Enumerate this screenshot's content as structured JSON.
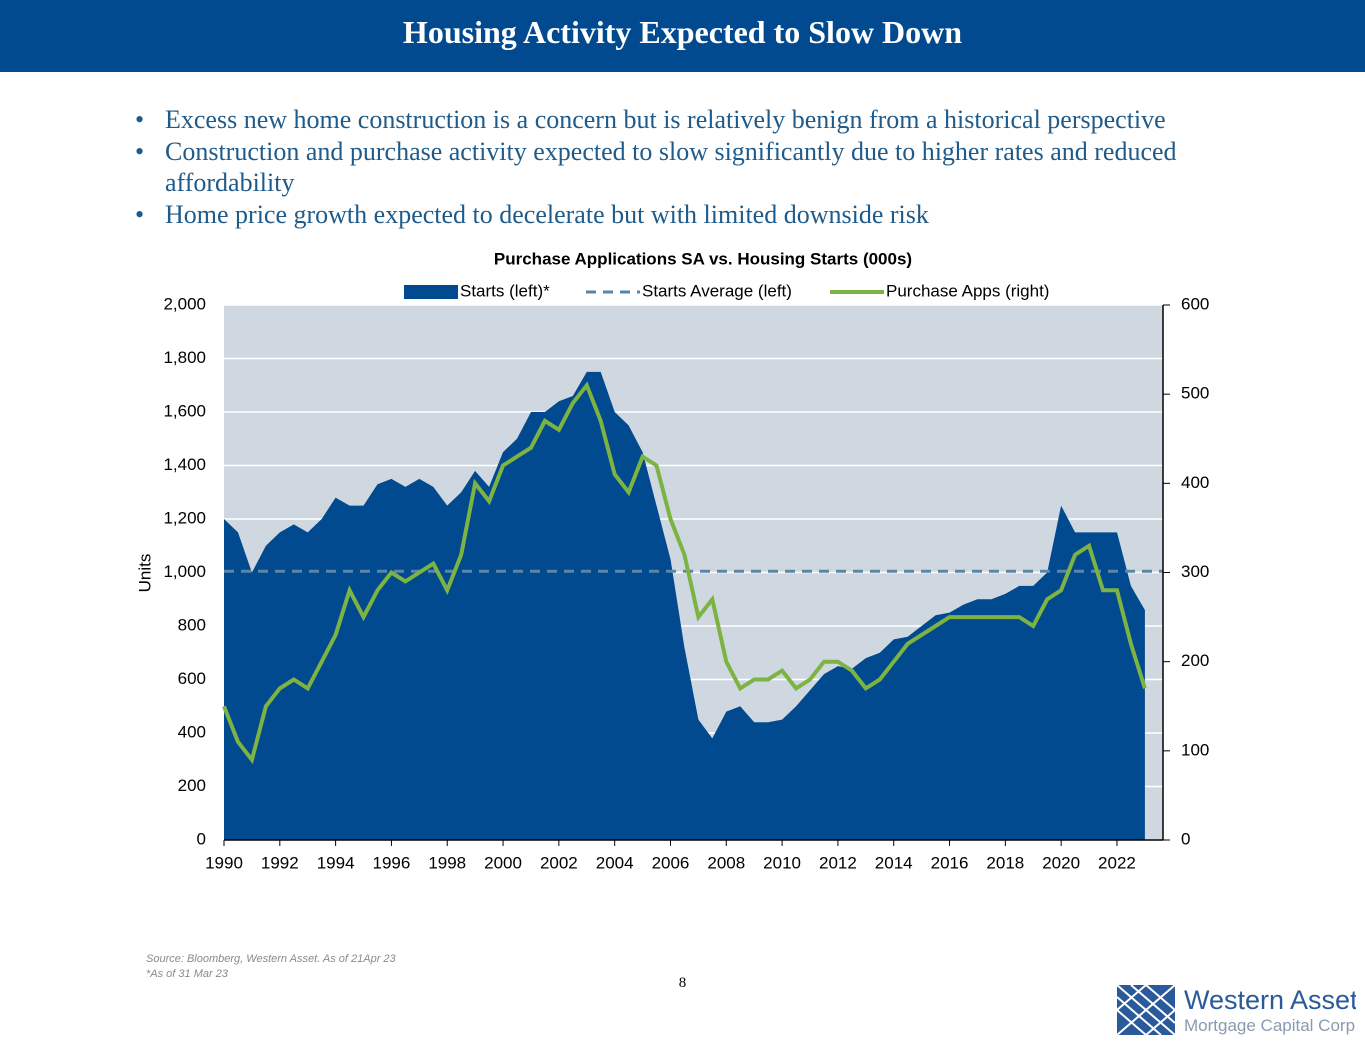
{
  "header": {
    "title": "Housing Activity Expected to Slow Down"
  },
  "bullets": [
    "Excess new home construction is a concern but is relatively benign from a historical perspective",
    "Construction and purchase activity expected to slow significantly due to higher rates and reduced affordability",
    "Home price growth expected to decelerate but with limited downside risk"
  ],
  "chart_data": {
    "type": "combo",
    "title": "Purchase Applications SA vs. Housing Starts (000s)",
    "y_label": "Units",
    "legend": "top",
    "x": [
      1990,
      1990.5,
      1991,
      1991.5,
      1992,
      1992.5,
      1993,
      1993.5,
      1994,
      1994.5,
      1995,
      1995.5,
      1996,
      1996.5,
      1997,
      1997.5,
      1998,
      1998.5,
      1999,
      1999.5,
      2000,
      2000.5,
      2001,
      2001.5,
      2002,
      2002.5,
      2003,
      2003.5,
      2004,
      2004.5,
      2005,
      2005.5,
      2006,
      2006.5,
      2007,
      2007.5,
      2008,
      2008.5,
      2009,
      2009.5,
      2010,
      2010.5,
      2011,
      2011.5,
      2012,
      2012.5,
      2013,
      2013.5,
      2014,
      2014.5,
      2015,
      2015.5,
      2016,
      2016.5,
      2017,
      2017.5,
      2018,
      2018.5,
      2019,
      2019.5,
      2020,
      2020.5,
      2021,
      2021.5,
      2022,
      2022.5,
      2023
    ],
    "xlim": [
      1990,
      2023.65
    ],
    "xticks": [
      1990,
      1992,
      1994,
      1996,
      1998,
      2000,
      2002,
      2004,
      2006,
      2008,
      2010,
      2012,
      2014,
      2016,
      2018,
      2020,
      2022
    ],
    "ylim": [
      0,
      2000
    ],
    "yticks": [
      0,
      200,
      400,
      600,
      800,
      {
        "value": 1000,
        "label": "1,000"
      },
      {
        "value": 1200,
        "label": "1,200"
      },
      {
        "value": 1400,
        "label": "1,400"
      },
      {
        "value": 1600,
        "label": "1,600"
      },
      {
        "value": 1800,
        "label": "1,800"
      },
      {
        "value": 2000,
        "label": "2,000"
      }
    ],
    "y2lim": [
      0,
      600
    ],
    "y2ticks": [
      0,
      100,
      200,
      300,
      400,
      500,
      600
    ],
    "grid": true,
    "series": [
      {
        "name": "Starts (left)*",
        "type": "area",
        "color": "#014a8f",
        "values": [
          1200,
          1150,
          1000,
          1100,
          1150,
          1180,
          1150,
          1200,
          1280,
          1250,
          1250,
          1330,
          1350,
          1320,
          1350,
          1320,
          1250,
          1300,
          1380,
          1320,
          1450,
          1500,
          1600,
          1600,
          1640,
          1660,
          1750,
          1750,
          1600,
          1550,
          1450,
          1250,
          1050,
          720,
          450,
          380,
          480,
          500,
          440,
          440,
          450,
          500,
          560,
          620,
          650,
          640,
          680,
          700,
          750,
          760,
          800,
          840,
          850,
          880,
          900,
          900,
          920,
          950,
          950,
          1000,
          1250,
          1150,
          1150,
          1150,
          1150,
          950,
          860
        ]
      },
      {
        "name": "Starts Average (left)",
        "type": "line",
        "dashed": true,
        "color": "#5b86a8",
        "x": [
          1990,
          2023.65
        ],
        "values": [
          1005,
          1005
        ]
      },
      {
        "name": "Purchase Apps (right)",
        "type": "line",
        "axis": "y2",
        "color": "#7cb342",
        "values": [
          150,
          110,
          90,
          150,
          170,
          180,
          170,
          200,
          230,
          280,
          250,
          280,
          300,
          290,
          300,
          310,
          280,
          320,
          400,
          380,
          420,
          430,
          440,
          470,
          460,
          490,
          510,
          470,
          410,
          390,
          430,
          420,
          360,
          320,
          250,
          270,
          200,
          170,
          180,
          180,
          190,
          170,
          180,
          200,
          200,
          190,
          170,
          180,
          200,
          220,
          230,
          240,
          250,
          250,
          250,
          250,
          250,
          250,
          240,
          270,
          280,
          320,
          330,
          280,
          280,
          220,
          170
        ]
      }
    ]
  },
  "footer": {
    "source": [
      "Source: Bloomberg, Western Asset. As of 21Apr 23",
      "*As of 31 Mar 23"
    ],
    "page_number": "8",
    "logo": {
      "name": "Western Asset",
      "subtitle": "Mortgage Capital Corp."
    }
  }
}
